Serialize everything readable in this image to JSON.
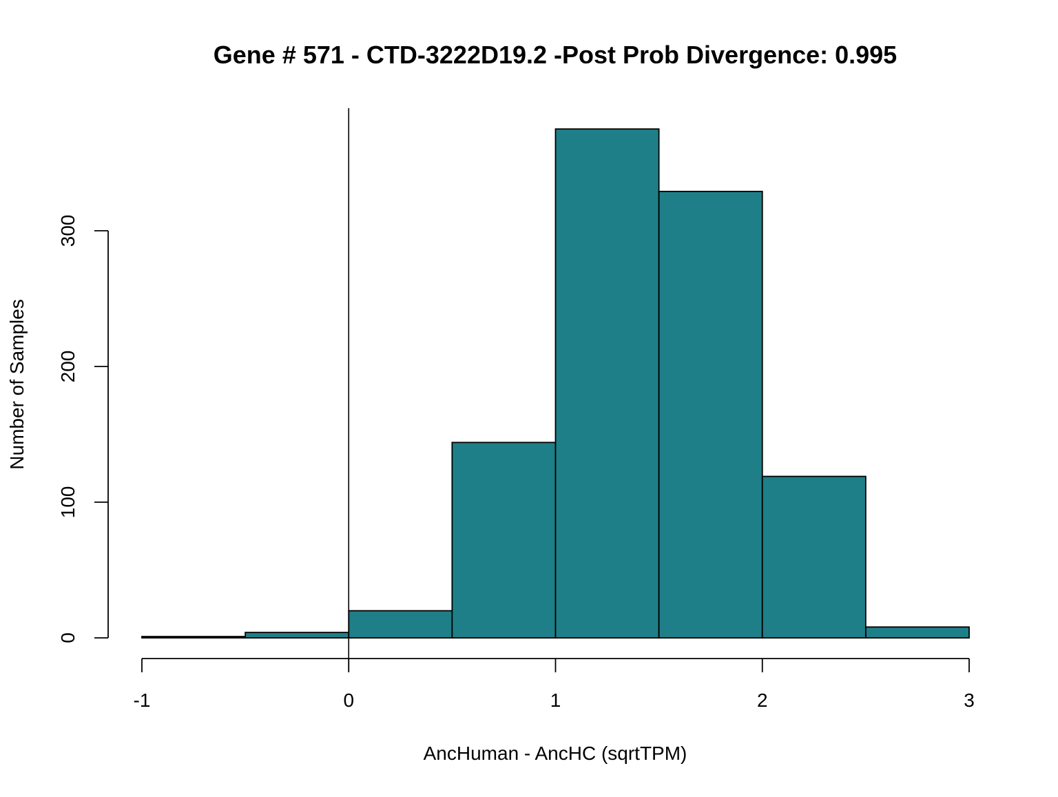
{
  "chart_data": {
    "type": "histogram",
    "title": "Gene # 571 - CTD-3222D19.2 -Post Prob Divergence: 0.995",
    "xlabel": "AncHuman - AncHC (sqrtTPM)",
    "ylabel": "Number of Samples",
    "bin_edges": [
      -1.0,
      -0.5,
      0.0,
      0.5,
      1.0,
      1.5,
      2.0,
      2.5,
      3.0
    ],
    "counts": [
      1,
      4,
      20,
      144,
      375,
      329,
      119,
      8
    ],
    "xlim": [
      -1,
      3
    ],
    "ylim": [
      0,
      390
    ],
    "x_ticks": [
      "-1",
      "0",
      "1",
      "2",
      "3"
    ],
    "y_ticks": [
      "0",
      "100",
      "200",
      "300"
    ],
    "vline_x": 0,
    "bar_color": "#1e7f88",
    "grid": false
  }
}
